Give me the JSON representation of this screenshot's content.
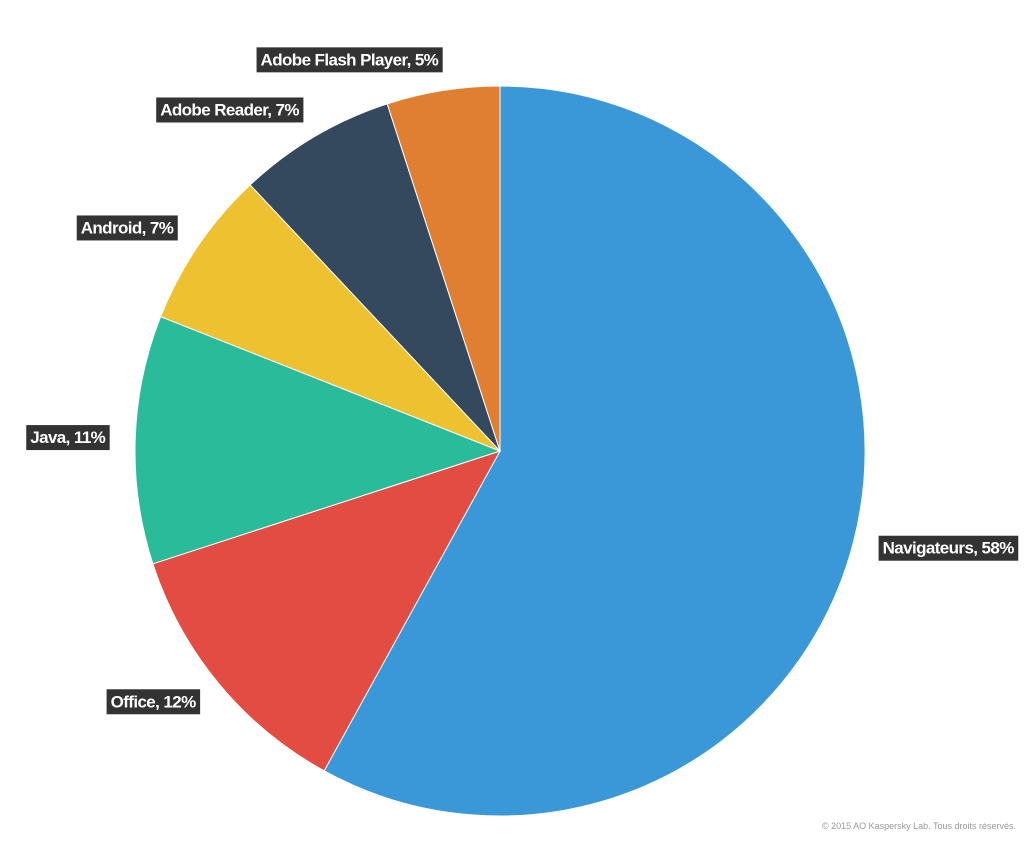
{
  "chart_data": {
    "type": "pie",
    "values": [
      58,
      12,
      11,
      7,
      7,
      5
    ],
    "value_labels": [
      "Navigateurs, 58%",
      "Office, 12%",
      "Java, 11%",
      "Android, 7%",
      "Adobe Reader, 7%",
      "Adobe Flash Player, 5%"
    ],
    "colors": [
      "#3a98d8",
      "#e24c42",
      "#2abb9b",
      "#eec130",
      "#34495e",
      "#e07f31"
    ],
    "footnote": "© 2015 AO Kaspersky Lab. Tous droits réservés."
  }
}
